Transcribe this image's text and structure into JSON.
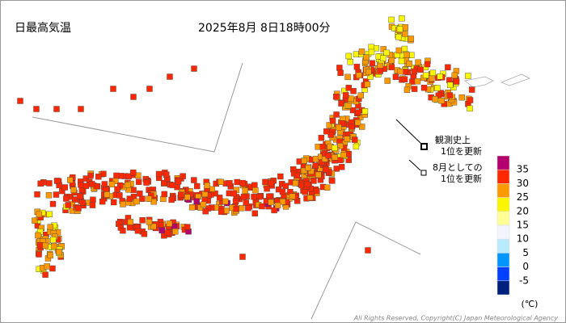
{
  "header": {
    "title": "日最高気温",
    "time": "2025年8月 8日18時00分"
  },
  "legend": {
    "record_all": [
      "観測史上",
      "1位を更新"
    ],
    "record_month": [
      "8月としての",
      "1位を更新"
    ]
  },
  "color_scale": {
    "labels": [
      35,
      30,
      25,
      20,
      15,
      10,
      5,
      0,
      -5
    ],
    "colors": [
      "#b4006e",
      "#ff2800",
      "#ff9900",
      "#faf500",
      "#ffff96",
      "#f4f4ff",
      "#b9ebff",
      "#0096ff",
      "#0041ff",
      "#002080"
    ],
    "unit": "(℃)"
  },
  "copyright": "All Rights Reserved, Copyright(C) Japan Meteorological Agency"
}
